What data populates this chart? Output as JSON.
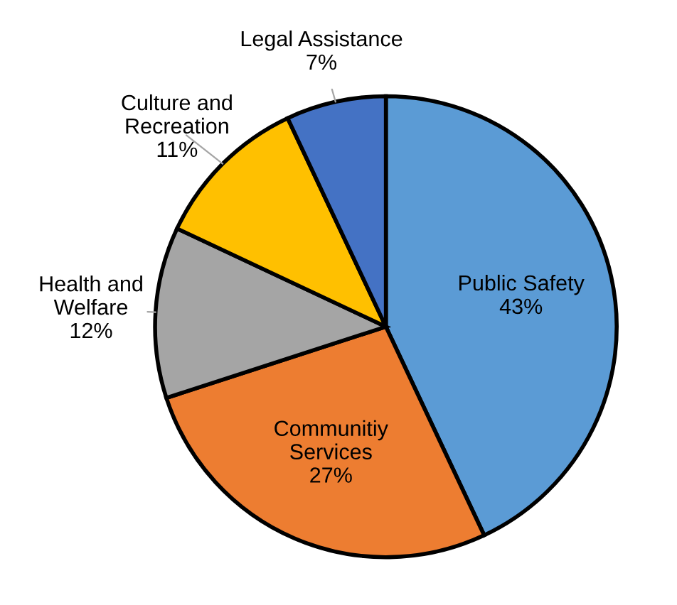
{
  "chart_data": {
    "type": "pie",
    "categories": [
      "Public Safety",
      "Communitiy Services",
      "Health and Welfare",
      "Culture and Recreation",
      "Legal Assistance"
    ],
    "values": [
      43,
      27,
      12,
      11,
      7
    ],
    "value_labels": [
      "43%",
      "27%",
      "12%",
      "11%",
      "7%"
    ],
    "colors": [
      "#5b9bd5",
      "#ed7d31",
      "#a5a5a5",
      "#ffc000",
      "#4472c4"
    ],
    "legend": false
  }
}
